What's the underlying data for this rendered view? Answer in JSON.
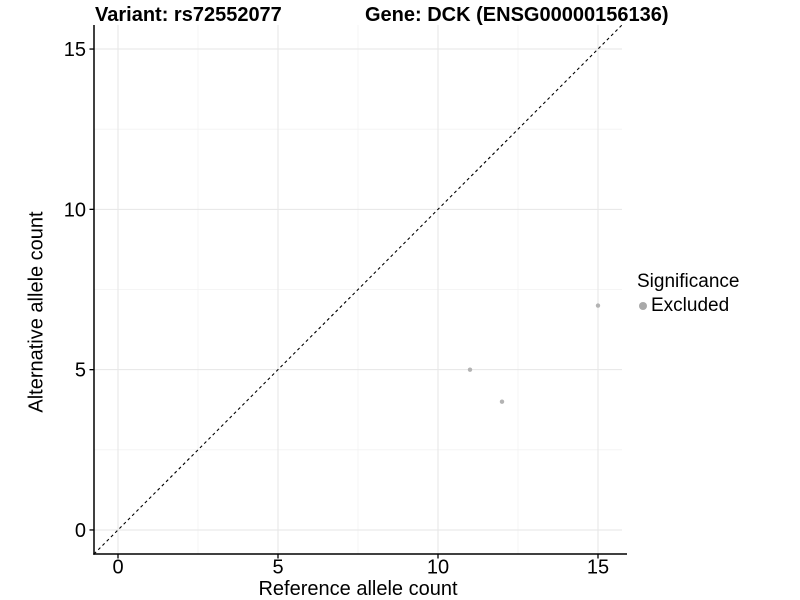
{
  "chart_data": {
    "type": "scatter",
    "title_left": "Variant: rs72552077",
    "title_right": "Gene: DCK (ENSG00000156136)",
    "xlabel": "Reference allele count",
    "ylabel": "Alternative allele count",
    "xlim": [
      -0.75,
      15.75
    ],
    "ylim": [
      -0.75,
      15.75
    ],
    "xticks": [
      0,
      5,
      10,
      15
    ],
    "yticks": [
      0,
      5,
      10,
      15
    ],
    "minor_breaks": [
      2.5,
      7.5,
      12.5
    ],
    "grid": true,
    "series": [
      {
        "name": "Excluded",
        "color": "#b3b3b3",
        "points": [
          [
            11,
            5
          ],
          [
            12,
            4
          ],
          [
            15,
            7
          ]
        ]
      }
    ],
    "identity_line": {
      "style": "dashed",
      "color": "#000000",
      "from": [
        -0.75,
        -0.75
      ],
      "to": [
        15.75,
        15.75
      ]
    },
    "legend": {
      "title": "Significance",
      "position": "right",
      "items": [
        {
          "label": "Excluded",
          "color": "#a9a9a9",
          "marker": "circle"
        }
      ]
    },
    "colors": {
      "background": "#ffffff",
      "axis_line": "#000000",
      "tick_label": "#000000",
      "grid_major": "#e6e6e6",
      "grid_minor": "#f2f2f2",
      "point": "#b3b3b3"
    }
  }
}
